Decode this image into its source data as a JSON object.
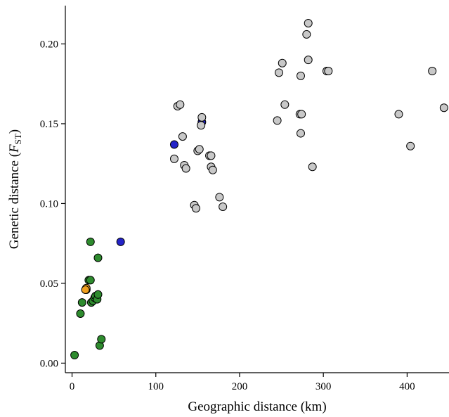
{
  "chart_data": {
    "type": "scatter",
    "title": "",
    "xlabel": "Geographic distance (km)",
    "ylabel": {
      "prefix": "Genetic distance (",
      "symbol": "F",
      "subscript": "ST",
      "suffix": ")"
    },
    "xlim": [
      -8,
      450
    ],
    "ylim": [
      -0.006,
      0.224
    ],
    "x_ticks": [
      0,
      100,
      200,
      300,
      400
    ],
    "x_tick_labels": [
      "0",
      "100",
      "200",
      "300",
      "400"
    ],
    "y_ticks": [
      0.0,
      0.05,
      0.1,
      0.15,
      0.2
    ],
    "y_tick_labels": [
      "0.00",
      "0.05",
      "0.10",
      "0.15",
      "0.20"
    ],
    "grid": false,
    "legend": "none",
    "colors": {
      "green": "#2e8b2e",
      "blue": "#2323c8",
      "orange": "#f0a020",
      "gray": "#c8c8c8"
    },
    "series": [
      {
        "color_key": "green",
        "points": [
          [
            3,
            0.005
          ],
          [
            10,
            0.031
          ],
          [
            12,
            0.038
          ],
          [
            17,
            0.046
          ],
          [
            20,
            0.052
          ],
          [
            22,
            0.076
          ],
          [
            22,
            0.052
          ],
          [
            23,
            0.038
          ],
          [
            25,
            0.039
          ],
          [
            27,
            0.041
          ],
          [
            28,
            0.042
          ],
          [
            30,
            0.04
          ],
          [
            31,
            0.043
          ],
          [
            31,
            0.066
          ],
          [
            33,
            0.011
          ],
          [
            35,
            0.015
          ]
        ]
      },
      {
        "color_key": "orange",
        "points": [
          [
            17,
            0.047
          ],
          [
            16,
            0.046
          ]
        ]
      },
      {
        "color_key": "blue",
        "points": [
          [
            58,
            0.076
          ],
          [
            122,
            0.137
          ],
          [
            155,
            0.151
          ]
        ]
      },
      {
        "color_key": "gray",
        "points": [
          [
            122,
            0.128
          ],
          [
            126,
            0.161
          ],
          [
            129,
            0.162
          ],
          [
            132,
            0.142
          ],
          [
            134,
            0.124
          ],
          [
            136,
            0.122
          ],
          [
            146,
            0.099
          ],
          [
            148,
            0.097
          ],
          [
            150,
            0.133
          ],
          [
            152,
            0.134
          ],
          [
            154,
            0.149
          ],
          [
            155,
            0.154
          ],
          [
            164,
            0.13
          ],
          [
            166,
            0.13
          ],
          [
            166,
            0.123
          ],
          [
            168,
            0.121
          ],
          [
            176,
            0.104
          ],
          [
            180,
            0.098
          ],
          [
            245,
            0.152
          ],
          [
            247,
            0.182
          ],
          [
            251,
            0.188
          ],
          [
            254,
            0.162
          ],
          [
            272,
            0.156
          ],
          [
            273,
            0.18
          ],
          [
            273,
            0.144
          ],
          [
            274,
            0.156
          ],
          [
            280,
            0.206
          ],
          [
            282,
            0.213
          ],
          [
            282,
            0.19
          ],
          [
            287,
            0.123
          ],
          [
            304,
            0.183
          ],
          [
            306,
            0.183
          ],
          [
            390,
            0.156
          ],
          [
            404,
            0.136
          ],
          [
            430,
            0.183
          ],
          [
            444,
            0.16
          ]
        ]
      }
    ]
  }
}
